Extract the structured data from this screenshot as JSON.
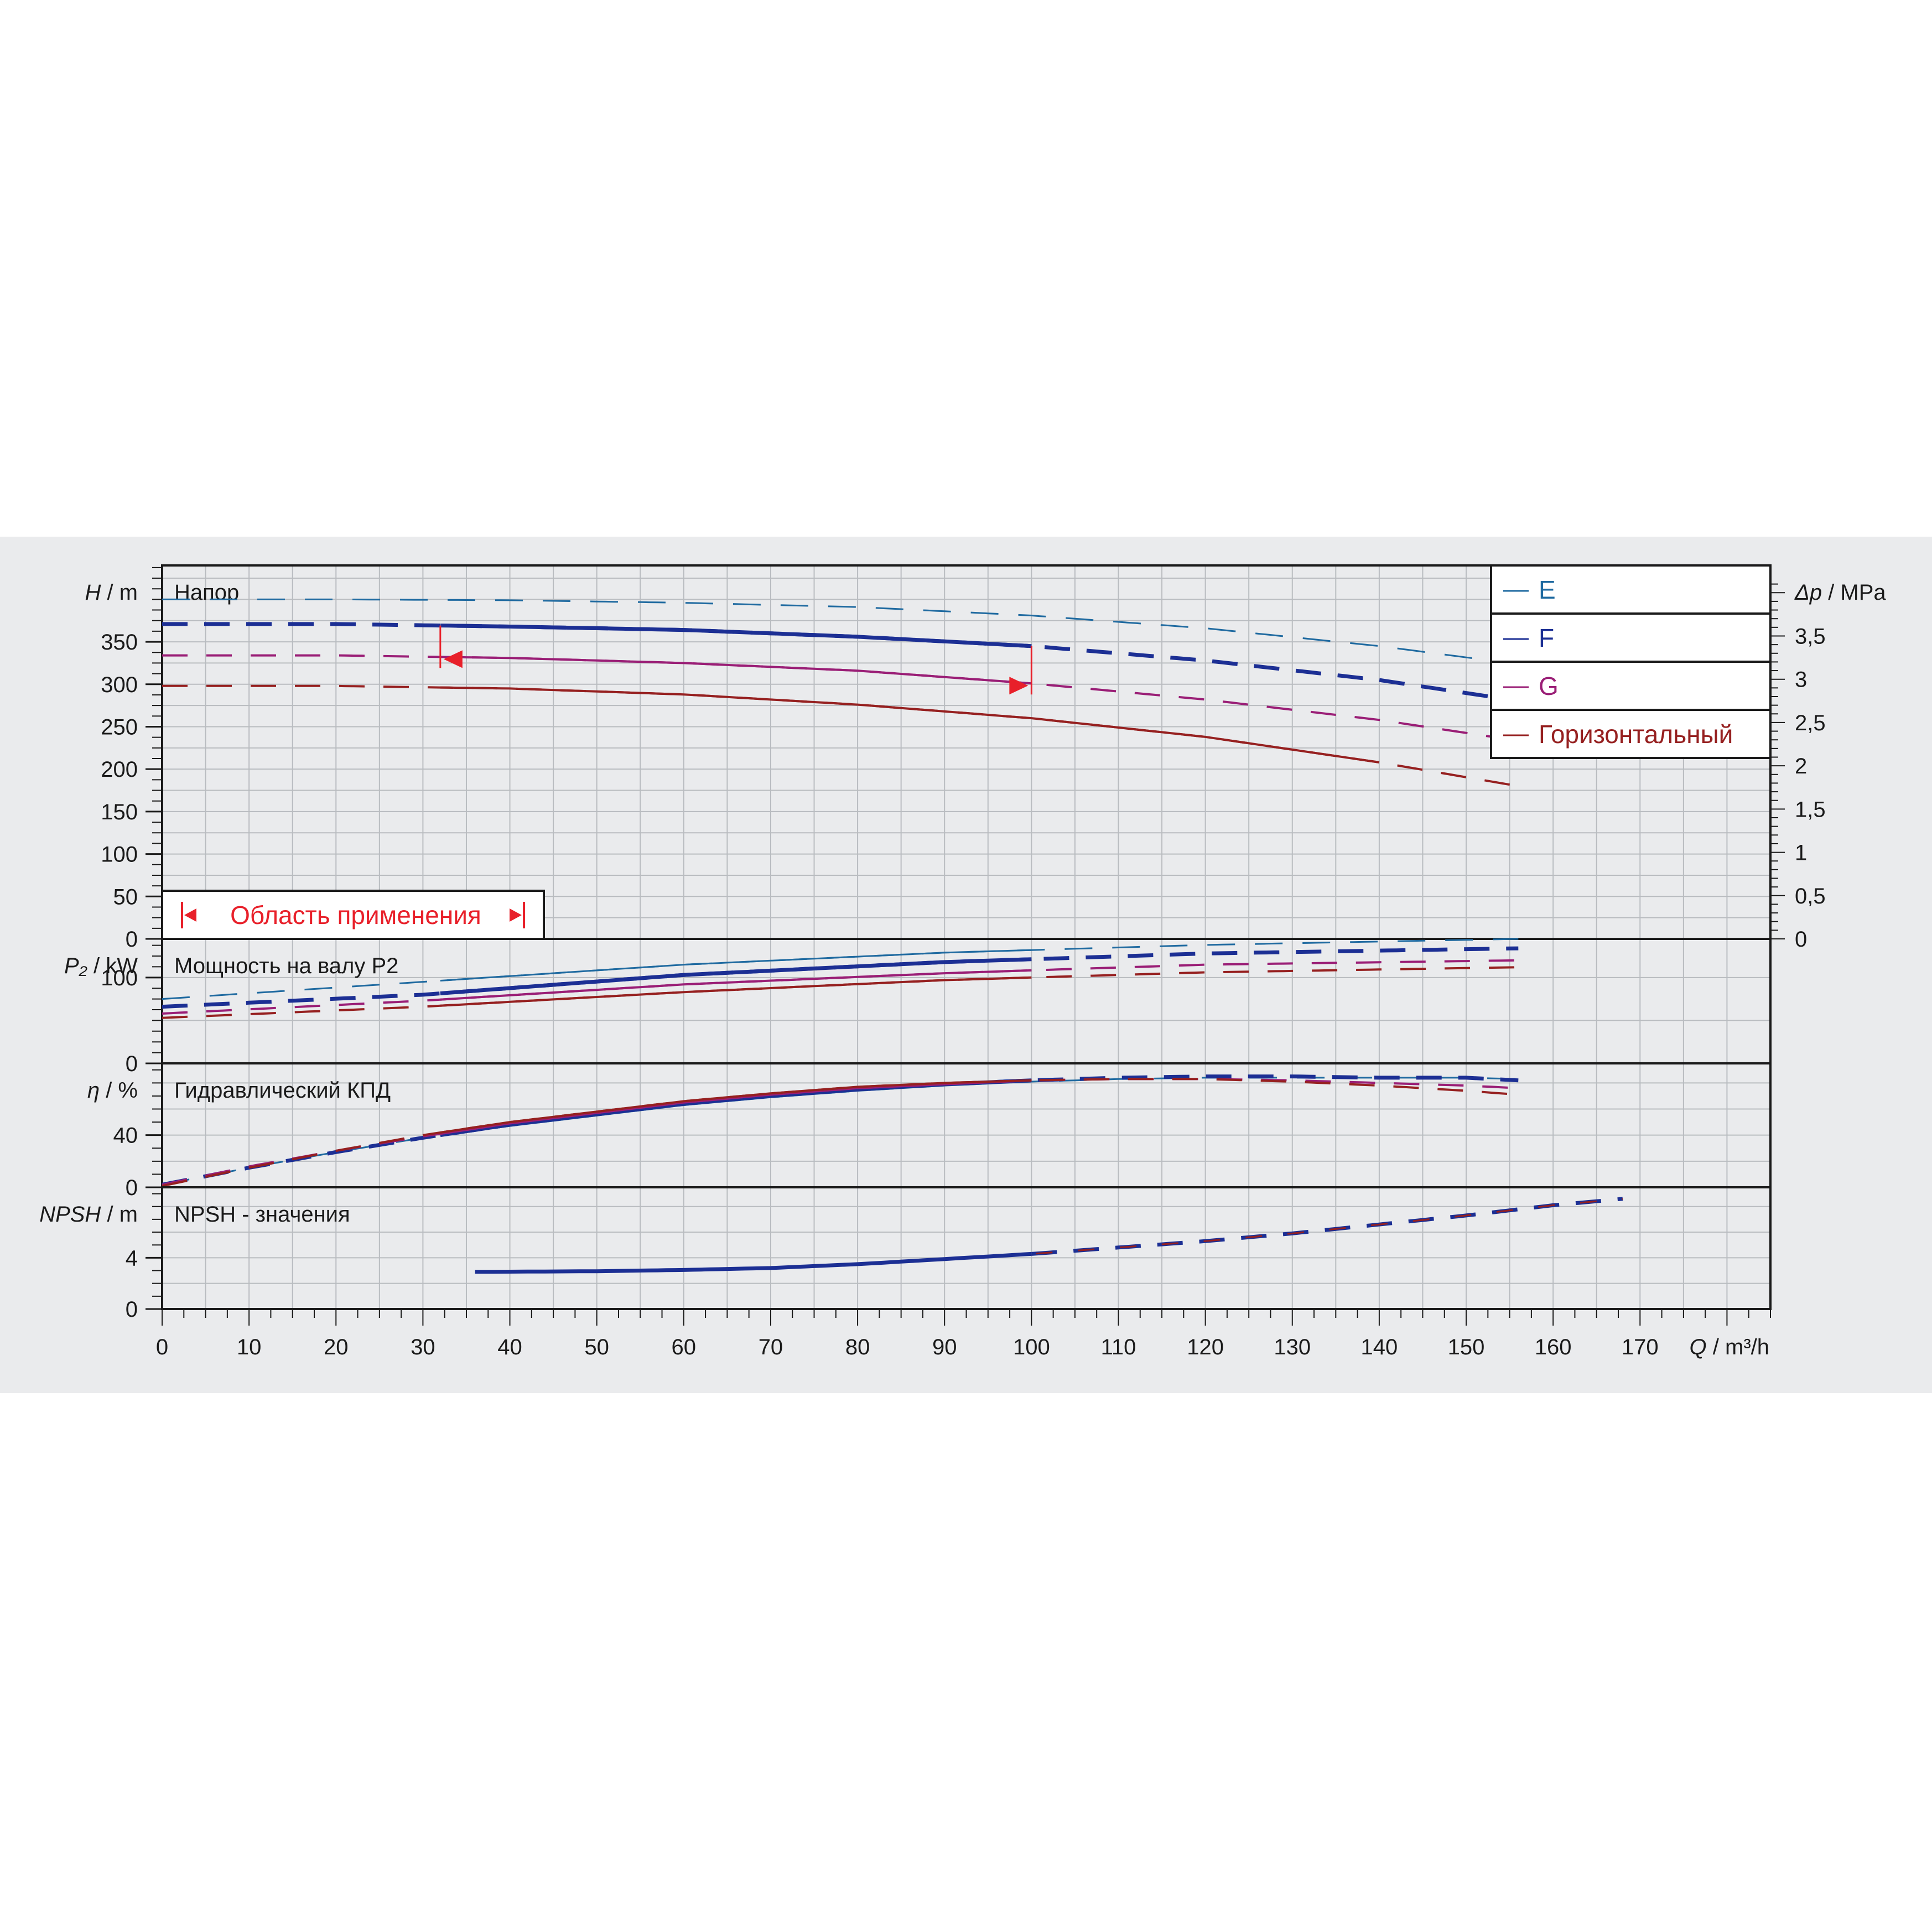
{
  "chart_data": {
    "type": "line",
    "x_axis": {
      "label_var": "Q",
      "label_unit": "m³/h",
      "range": [
        0,
        185
      ],
      "ticks": [
        0,
        10,
        20,
        30,
        40,
        50,
        60,
        70,
        80,
        90,
        100,
        110,
        120,
        130,
        140,
        150,
        160,
        170
      ]
    },
    "colors": {
      "E": "#1f6aa0",
      "F": "#1c2f94",
      "G": "#9a1e76",
      "H": "#962020",
      "region": "#e8202a"
    },
    "legend": {
      "placement": "top-right",
      "entries": [
        "E",
        "F",
        "G",
        "Горизонтальный"
      ]
    },
    "panels": [
      {
        "id": "head",
        "title": "Напор",
        "ylabel_var": "H",
        "ylabel_unit": "m",
        "ylim": [
          0,
          440
        ],
        "yticks": [
          0,
          50,
          100,
          150,
          200,
          250,
          300,
          350
        ],
        "right_axis": {
          "label_var": "Δp",
          "label_unit": "MPa",
          "ticks": [
            "0",
            "0,5",
            "1",
            "1,5",
            "2",
            "2,5",
            "3",
            "3,5"
          ]
        },
        "series": [
          {
            "key": "E",
            "points": [
              [
                0,
                400
              ],
              [
                20,
                400
              ],
              [
                40,
                399
              ],
              [
                60,
                396
              ],
              [
                80,
                391
              ],
              [
                100,
                381
              ],
              [
                120,
                366
              ],
              [
                140,
                345
              ],
              [
                155,
                325
              ]
            ],
            "solid": [
              0,
              0
            ]
          },
          {
            "key": "F",
            "points": [
              [
                0,
                371
              ],
              [
                20,
                371
              ],
              [
                40,
                368
              ],
              [
                60,
                364
              ],
              [
                80,
                356
              ],
              [
                100,
                345
              ],
              [
                120,
                328
              ],
              [
                140,
                305
              ],
              [
                155,
                282
              ]
            ],
            "solid": [
              32,
              100
            ]
          },
          {
            "key": "G",
            "points": [
              [
                0,
                334
              ],
              [
                20,
                334
              ],
              [
                40,
                331
              ],
              [
                60,
                325
              ],
              [
                80,
                316
              ],
              [
                100,
                301
              ],
              [
                120,
                282
              ],
              [
                140,
                258
              ],
              [
                155,
                235
              ]
            ],
            "solid": [
              32,
              100
            ]
          },
          {
            "key": "H",
            "points": [
              [
                0,
                298
              ],
              [
                20,
                298
              ],
              [
                40,
                295
              ],
              [
                60,
                288
              ],
              [
                80,
                276
              ],
              [
                100,
                260
              ],
              [
                120,
                238
              ],
              [
                140,
                208
              ],
              [
                156,
                180
              ]
            ],
            "solid": [
              32,
              140
            ]
          }
        ],
        "region_label": "Область применения",
        "region_q": [
          32,
          100
        ]
      },
      {
        "id": "power",
        "title": "Мощность на валу P2",
        "ylabel_var": "P₂",
        "ylabel_unit": "kW",
        "ylim": [
          0,
          145
        ],
        "yticks": [
          0,
          100
        ],
        "series": [
          {
            "key": "E",
            "points": [
              [
                0,
                75
              ],
              [
                30,
                95
              ],
              [
                60,
                115
              ],
              [
                90,
                129
              ],
              [
                120,
                138
              ],
              [
                156,
                145
              ]
            ]
          },
          {
            "key": "F",
            "points": [
              [
                0,
                66
              ],
              [
                30,
                80
              ],
              [
                60,
                103
              ],
              [
                90,
                118
              ],
              [
                120,
                128
              ],
              [
                156,
                134
              ]
            ]
          },
          {
            "key": "G",
            "points": [
              [
                0,
                58
              ],
              [
                30,
                73
              ],
              [
                60,
                92
              ],
              [
                90,
                105
              ],
              [
                120,
                115
              ],
              [
                156,
                120
              ]
            ]
          },
          {
            "key": "H",
            "points": [
              [
                0,
                53
              ],
              [
                30,
                66
              ],
              [
                60,
                83
              ],
              [
                90,
                97
              ],
              [
                120,
                106
              ],
              [
                156,
                112
              ]
            ]
          }
        ]
      },
      {
        "id": "efficiency",
        "title": "Гидравлический КПД",
        "ylabel_var": "η",
        "ylabel_unit": "%",
        "ylim": [
          0,
          95
        ],
        "yticks": [
          0,
          40
        ],
        "series": [
          {
            "key": "E",
            "points": [
              [
                0,
                2
              ],
              [
                10,
                15
              ],
              [
                20,
                27
              ],
              [
                30,
                38
              ],
              [
                40,
                47
              ],
              [
                50,
                55
              ],
              [
                60,
                63
              ],
              [
                70,
                69
              ],
              [
                80,
                74
              ],
              [
                90,
                78
              ],
              [
                100,
                81
              ],
              [
                110,
                83
              ],
              [
                120,
                84
              ],
              [
                130,
                84
              ],
              [
                140,
                84
              ],
              [
                150,
                84
              ],
              [
                156,
                83
              ]
            ]
          },
          {
            "key": "F",
            "points": [
              [
                0,
                2
              ],
              [
                10,
                15
              ],
              [
                20,
                27
              ],
              [
                30,
                38
              ],
              [
                40,
                48
              ],
              [
                50,
                56
              ],
              [
                60,
                64
              ],
              [
                70,
                70
              ],
              [
                80,
                75
              ],
              [
                90,
                79
              ],
              [
                100,
                82
              ],
              [
                110,
                84
              ],
              [
                120,
                85
              ],
              [
                130,
                85
              ],
              [
                140,
                84
              ],
              [
                150,
                84
              ],
              [
                156,
                82
              ]
            ]
          },
          {
            "key": "G",
            "points": [
              [
                0,
                2
              ],
              [
                10,
                16
              ],
              [
                20,
                28
              ],
              [
                30,
                39
              ],
              [
                40,
                49
              ],
              [
                50,
                57
              ],
              [
                60,
                65
              ],
              [
                70,
                71
              ],
              [
                80,
                76
              ],
              [
                90,
                79
              ],
              [
                100,
                82
              ],
              [
                110,
                83
              ],
              [
                120,
                83
              ],
              [
                130,
                82
              ],
              [
                140,
                80
              ],
              [
                150,
                78
              ],
              [
                156,
                76
              ]
            ]
          },
          {
            "key": "H",
            "points": [
              [
                0,
                1
              ],
              [
                10,
                15
              ],
              [
                20,
                28
              ],
              [
                30,
                40
              ],
              [
                40,
                50
              ],
              [
                50,
                58
              ],
              [
                60,
                66
              ],
              [
                70,
                72
              ],
              [
                80,
                77
              ],
              [
                90,
                80
              ],
              [
                100,
                82
              ],
              [
                110,
                83
              ],
              [
                120,
                83
              ],
              [
                130,
                81
              ],
              [
                140,
                78
              ],
              [
                150,
                74
              ],
              [
                156,
                71
              ]
            ]
          }
        ]
      },
      {
        "id": "npsh",
        "title": "NPSH - значения",
        "ylabel_var": "NPSH",
        "ylabel_unit": "m",
        "ylim": [
          0,
          9.5
        ],
        "yticks": [
          0,
          4
        ],
        "series": [
          {
            "key": "F",
            "points": [
              [
                36,
                2.9
              ],
              [
                50,
                2.95
              ],
              [
                60,
                3.05
              ],
              [
                70,
                3.2
              ],
              [
                80,
                3.5
              ],
              [
                90,
                3.9
              ],
              [
                100,
                4.3
              ],
              [
                110,
                4.8
              ],
              [
                120,
                5.3
              ],
              [
                130,
                5.9
              ],
              [
                140,
                6.6
              ],
              [
                150,
                7.3
              ],
              [
                160,
                8.1
              ],
              [
                168,
                8.6
              ]
            ]
          }
        ]
      }
    ]
  }
}
